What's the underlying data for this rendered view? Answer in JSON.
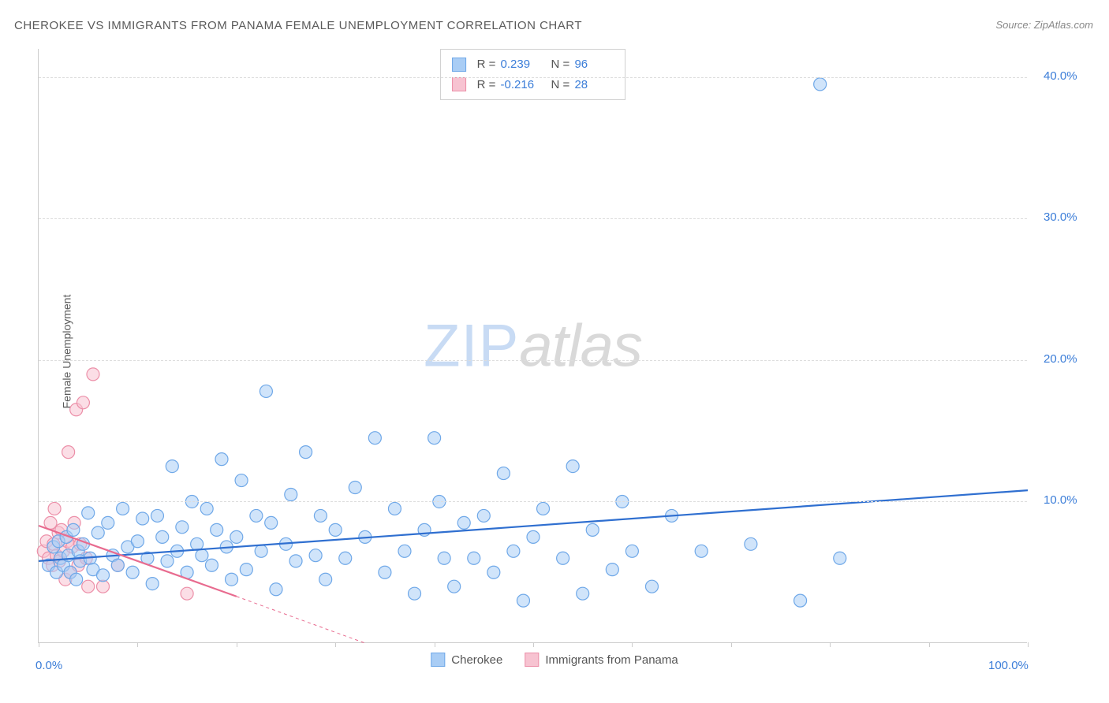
{
  "title": "CHEROKEE VS IMMIGRANTS FROM PANAMA FEMALE UNEMPLOYMENT CORRELATION CHART",
  "source": "Source: ZipAtlas.com",
  "y_axis_label": "Female Unemployment",
  "watermark": {
    "part1": "ZIP",
    "part2": "atlas"
  },
  "chart": {
    "type": "scatter",
    "xlim": [
      0,
      100
    ],
    "ylim": [
      0,
      42
    ],
    "x_ticks": [
      0,
      10,
      20,
      30,
      40,
      50,
      60,
      70,
      80,
      90,
      100
    ],
    "x_tick_labels": {
      "0": "0.0%",
      "100": "100.0%"
    },
    "y_ticks": [
      10,
      20,
      30,
      40
    ],
    "y_tick_labels": {
      "10": "10.0%",
      "20": "20.0%",
      "30": "30.0%",
      "40": "40.0%"
    },
    "grid_color": "#dddddd",
    "background_color": "#ffffff",
    "marker_radius": 8,
    "marker_stroke_width": 1.2,
    "line_width": 2.2
  },
  "series": [
    {
      "name": "Cherokee",
      "color_fill": "#a9cdf5",
      "color_stroke": "#6fa8e8",
      "line_color": "#2f6fd0",
      "R": "0.239",
      "N": "96",
      "trend": {
        "x1": 0,
        "y1": 5.8,
        "x2": 100,
        "y2": 10.8
      },
      "points": [
        [
          1,
          5.5
        ],
        [
          1.5,
          6.8
        ],
        [
          1.8,
          5.0
        ],
        [
          2,
          7.2
        ],
        [
          2.2,
          6.0
        ],
        [
          2.5,
          5.5
        ],
        [
          2.8,
          7.5
        ],
        [
          3,
          6.2
        ],
        [
          3.2,
          5.0
        ],
        [
          3.5,
          8.0
        ],
        [
          3.8,
          4.5
        ],
        [
          4,
          6.5
        ],
        [
          4.2,
          5.8
        ],
        [
          4.5,
          7.0
        ],
        [
          5,
          9.2
        ],
        [
          5.2,
          6.0
        ],
        [
          5.5,
          5.2
        ],
        [
          6,
          7.8
        ],
        [
          6.5,
          4.8
        ],
        [
          7,
          8.5
        ],
        [
          7.5,
          6.2
        ],
        [
          8,
          5.5
        ],
        [
          8.5,
          9.5
        ],
        [
          9,
          6.8
        ],
        [
          9.5,
          5.0
        ],
        [
          10,
          7.2
        ],
        [
          10.5,
          8.8
        ],
        [
          11,
          6.0
        ],
        [
          11.5,
          4.2
        ],
        [
          12,
          9.0
        ],
        [
          12.5,
          7.5
        ],
        [
          13,
          5.8
        ],
        [
          13.5,
          12.5
        ],
        [
          14,
          6.5
        ],
        [
          14.5,
          8.2
        ],
        [
          15,
          5.0
        ],
        [
          15.5,
          10.0
        ],
        [
          16,
          7.0
        ],
        [
          16.5,
          6.2
        ],
        [
          17,
          9.5
        ],
        [
          17.5,
          5.5
        ],
        [
          18,
          8.0
        ],
        [
          18.5,
          13.0
        ],
        [
          19,
          6.8
        ],
        [
          19.5,
          4.5
        ],
        [
          20,
          7.5
        ],
        [
          20.5,
          11.5
        ],
        [
          21,
          5.2
        ],
        [
          22,
          9.0
        ],
        [
          22.5,
          6.5
        ],
        [
          23,
          17.8
        ],
        [
          23.5,
          8.5
        ],
        [
          24,
          3.8
        ],
        [
          25,
          7.0
        ],
        [
          25.5,
          10.5
        ],
        [
          26,
          5.8
        ],
        [
          27,
          13.5
        ],
        [
          28,
          6.2
        ],
        [
          28.5,
          9.0
        ],
        [
          29,
          4.5
        ],
        [
          30,
          8.0
        ],
        [
          31,
          6.0
        ],
        [
          32,
          11.0
        ],
        [
          33,
          7.5
        ],
        [
          34,
          14.5
        ],
        [
          35,
          5.0
        ],
        [
          36,
          9.5
        ],
        [
          37,
          6.5
        ],
        [
          38,
          3.5
        ],
        [
          39,
          8.0
        ],
        [
          40,
          14.5
        ],
        [
          40.5,
          10.0
        ],
        [
          41,
          6.0
        ],
        [
          42,
          4.0
        ],
        [
          43,
          8.5
        ],
        [
          44,
          6.0
        ],
        [
          45,
          9.0
        ],
        [
          46,
          5.0
        ],
        [
          47,
          12.0
        ],
        [
          48,
          6.5
        ],
        [
          49,
          3.0
        ],
        [
          50,
          7.5
        ],
        [
          51,
          9.5
        ],
        [
          53,
          6.0
        ],
        [
          54,
          12.5
        ],
        [
          55,
          3.5
        ],
        [
          56,
          8.0
        ],
        [
          58,
          5.2
        ],
        [
          59,
          10.0
        ],
        [
          60,
          6.5
        ],
        [
          62,
          4.0
        ],
        [
          64,
          9.0
        ],
        [
          67,
          6.5
        ],
        [
          72,
          7.0
        ],
        [
          77,
          3.0
        ],
        [
          79,
          39.5
        ],
        [
          81,
          6.0
        ]
      ]
    },
    {
      "name": "Immigrants from Panama",
      "color_fill": "#f7c3d1",
      "color_stroke": "#ec8fa8",
      "line_color": "#e86b8f",
      "R": "-0.216",
      "N": "28",
      "trend": {
        "x1": 0,
        "y1": 8.3,
        "x2": 20,
        "y2": 3.3
      },
      "trend_dash": {
        "x1": 20,
        "y1": 3.3,
        "x2": 33,
        "y2": 0.0
      },
      "points": [
        [
          0.5,
          6.5
        ],
        [
          0.8,
          7.2
        ],
        [
          1.0,
          6.0
        ],
        [
          1.2,
          8.5
        ],
        [
          1.4,
          5.5
        ],
        [
          1.5,
          7.0
        ],
        [
          1.6,
          9.5
        ],
        [
          1.8,
          6.2
        ],
        [
          2.0,
          7.8
        ],
        [
          2.1,
          5.8
        ],
        [
          2.3,
          8.0
        ],
        [
          2.5,
          6.5
        ],
        [
          2.7,
          4.5
        ],
        [
          2.9,
          7.2
        ],
        [
          3.0,
          13.5
        ],
        [
          3.2,
          5.0
        ],
        [
          3.4,
          6.8
        ],
        [
          3.6,
          8.5
        ],
        [
          3.8,
          16.5
        ],
        [
          4.0,
          5.5
        ],
        [
          4.2,
          7.0
        ],
        [
          4.5,
          17.0
        ],
        [
          4.8,
          6.0
        ],
        [
          5.0,
          4.0
        ],
        [
          5.5,
          19.0
        ],
        [
          6.5,
          4.0
        ],
        [
          8.0,
          5.5
        ],
        [
          15,
          3.5
        ]
      ]
    }
  ],
  "legend_bottom": [
    {
      "label": "Cherokee",
      "fill": "#a9cdf5",
      "stroke": "#6fa8e8"
    },
    {
      "label": "Immigrants from Panama",
      "fill": "#f7c3d1",
      "stroke": "#ec8fa8"
    }
  ]
}
